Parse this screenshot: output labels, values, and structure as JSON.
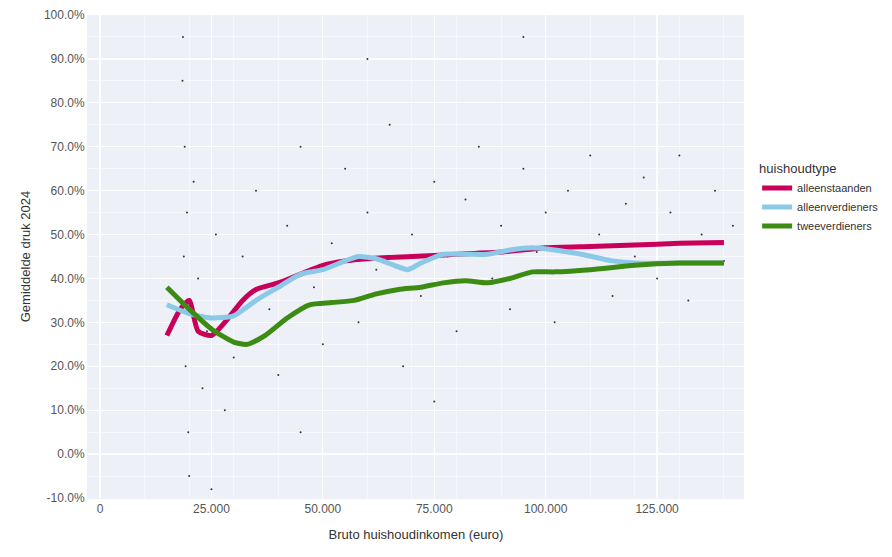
{
  "chart_data": {
    "type": "line",
    "x_label": "Bruto huishoudinkomen (euro)",
    "y_label": "Gemiddelde druk 2024",
    "legend_title": "huishoudtype",
    "legend": "right",
    "grid": true,
    "xlim": [
      -2700,
      144500
    ],
    "ylim": [
      -10,
      100
    ],
    "xticks": [
      0,
      {
        "value": 25000,
        "label": "25.000"
      },
      {
        "value": 50000,
        "label": "50.000"
      },
      {
        "value": 75000,
        "label": "75.000"
      },
      {
        "value": 100000,
        "label": "100.000"
      },
      {
        "value": 125000,
        "label": "125.000"
      }
    ],
    "yticks": [
      {
        "value": -10,
        "label": "-10.0%"
      },
      {
        "value": 0,
        "label": "0.0%"
      },
      {
        "value": 10,
        "label": "10.0%"
      },
      {
        "value": 20,
        "label": "20.0%"
      },
      {
        "value": 30,
        "label": "30.0%"
      },
      {
        "value": 40,
        "label": "40.0%"
      },
      {
        "value": 50,
        "label": "50.0%"
      },
      {
        "value": 60,
        "label": "60.0%"
      },
      {
        "value": 70,
        "label": "70.0%"
      },
      {
        "value": 80,
        "label": "80.0%"
      },
      {
        "value": 90,
        "label": "90.0%"
      },
      {
        "value": 100,
        "label": "100.0%"
      }
    ],
    "points": {
      "type": "scatter",
      "color": "#333333",
      "x": [
        18500,
        19000,
        19500,
        18800,
        19200,
        19800,
        20000,
        18600,
        21000,
        22000,
        23000,
        24000,
        26000,
        28000,
        30000,
        32000,
        35000,
        38000,
        40000,
        42000,
        45000,
        48000,
        50000,
        52000,
        55000,
        58000,
        60000,
        62000,
        65000,
        68000,
        70000,
        72000,
        75000,
        78000,
        80000,
        82000,
        85000,
        88000,
        90000,
        92000,
        95000,
        98000,
        100000,
        102000,
        105000,
        108000,
        110000,
        112000,
        115000,
        118000,
        120000,
        122000,
        125000,
        128000,
        130000,
        132000,
        135000,
        138000,
        140000,
        142000,
        60000,
        95000,
        45000,
        25000,
        75000
      ],
      "y": [
        85,
        70,
        55,
        45,
        20,
        5,
        -5,
        95,
        62,
        40,
        15,
        28,
        50,
        10,
        22,
        45,
        60,
        33,
        18,
        52,
        70,
        38,
        25,
        48,
        65,
        30,
        55,
        42,
        75,
        20,
        50,
        36,
        62,
        45,
        28,
        58,
        70,
        40,
        52,
        33,
        65,
        46,
        55,
        30,
        60,
        42,
        68,
        50,
        36,
        57,
        45,
        63,
        40,
        55,
        68,
        35,
        50,
        60,
        44,
        52,
        90,
        95,
        5,
        -8,
        12
      ]
    },
    "series": [
      {
        "name": "alleenstaanden",
        "color": "#c8005a",
        "x": [
          15000,
          18000,
          20000,
          22000,
          25000,
          28000,
          32000,
          35000,
          40000,
          45000,
          50000,
          55000,
          60000,
          70000,
          80000,
          90000,
          100000,
          110000,
          120000,
          130000,
          140000
        ],
        "values": [
          27,
          33,
          35,
          28,
          27,
          30,
          35,
          37.5,
          39,
          41,
          43,
          44,
          44.5,
          45,
          45.5,
          46,
          47,
          47.3,
          47.6,
          48,
          48.2
        ]
      },
      {
        "name": "alleenverdieners",
        "color": "#8cc8e8",
        "x": [
          15000,
          20000,
          25000,
          30000,
          35000,
          40000,
          45000,
          50000,
          55000,
          58000,
          62000,
          66000,
          69000,
          72000,
          77000,
          82000,
          87000,
          92000,
          97000,
          102000,
          108000,
          115000,
          120000,
          130000,
          140000
        ],
        "values": [
          34,
          32,
          31,
          31.5,
          35,
          38,
          41,
          42,
          44,
          45,
          44.5,
          43,
          42,
          43.5,
          45.5,
          45.5,
          45.5,
          46.5,
          47,
          46.5,
          45.5,
          44,
          43.5,
          43.5,
          43.5
        ]
      },
      {
        "name": "tweeverdieners",
        "color": "#3c8c14",
        "x": [
          15000,
          20000,
          25000,
          30000,
          33000,
          37000,
          42000,
          47000,
          52000,
          57000,
          62000,
          67000,
          72000,
          77000,
          82000,
          87000,
          92000,
          97000,
          102000,
          110000,
          120000,
          130000,
          140000
        ],
        "values": [
          38,
          33,
          28.5,
          25.5,
          25,
          27,
          31,
          34,
          34.5,
          35,
          36.5,
          37.5,
          38,
          39,
          39.5,
          39,
          40,
          41.5,
          41.5,
          42,
          43,
          43.5,
          43.5
        ]
      }
    ]
  }
}
